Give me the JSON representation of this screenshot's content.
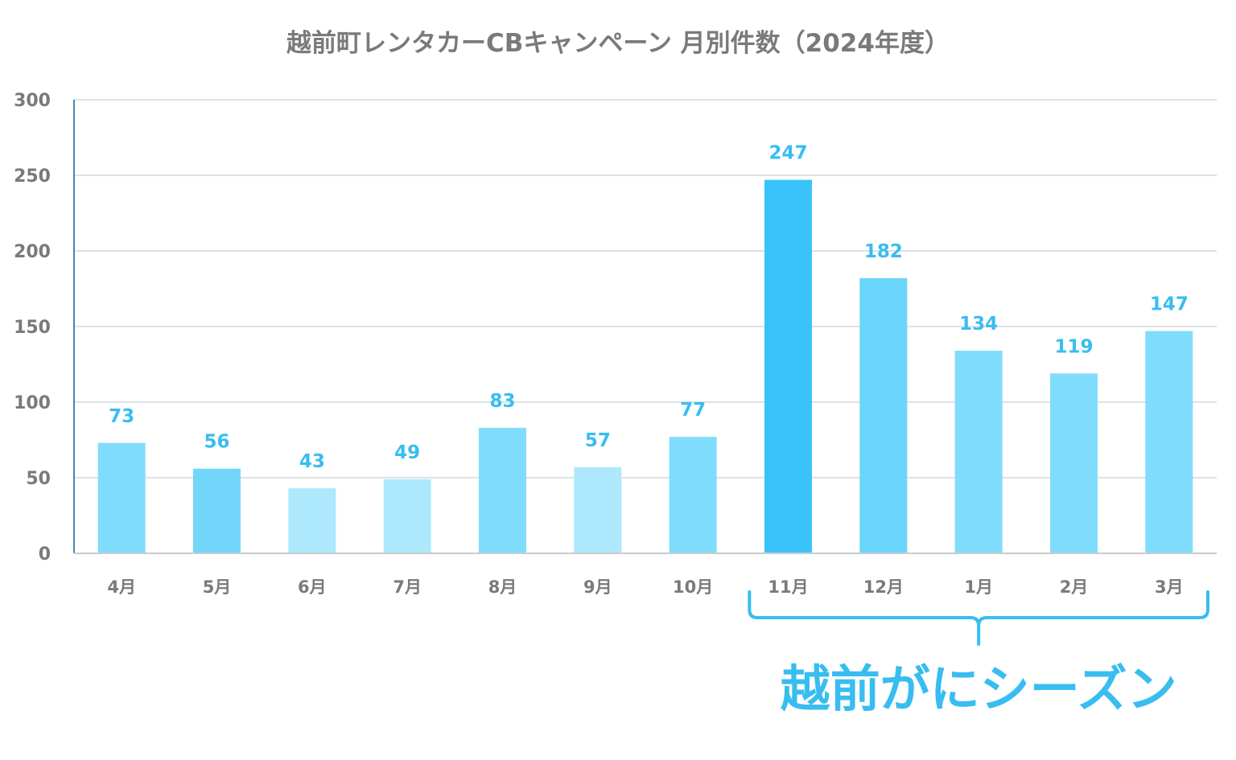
{
  "chart_data": {
    "type": "bar",
    "title": "越前町レンタカーCBキャンペーン 月別件数（2024年度）",
    "xlabel": "",
    "ylabel": "",
    "categories": [
      "4月",
      "5月",
      "6月",
      "7月",
      "8月",
      "9月",
      "10月",
      "11月",
      "12月",
      "1月",
      "2月",
      "3月"
    ],
    "values": [
      73,
      56,
      43,
      49,
      83,
      57,
      77,
      247,
      182,
      134,
      119,
      147
    ],
    "bar_colors": [
      "#80dcfc",
      "#72d6fa",
      "#aee8fc",
      "#aee8fc",
      "#80dcfc",
      "#aee8fc",
      "#80dcfc",
      "#38c3fa",
      "#6ad5fa",
      "#80dcfc",
      "#80dcfc",
      "#80dcfc"
    ],
    "yticks": [
      0,
      50,
      100,
      150,
      200,
      250,
      300
    ],
    "ylim": [
      0,
      300
    ],
    "grid": true,
    "data_label_color": "#38bdf0",
    "annotation": {
      "text": "越前がにシーズン",
      "bracket_from": "11月",
      "bracket_to": "3月",
      "color": "#38bdf0"
    }
  }
}
